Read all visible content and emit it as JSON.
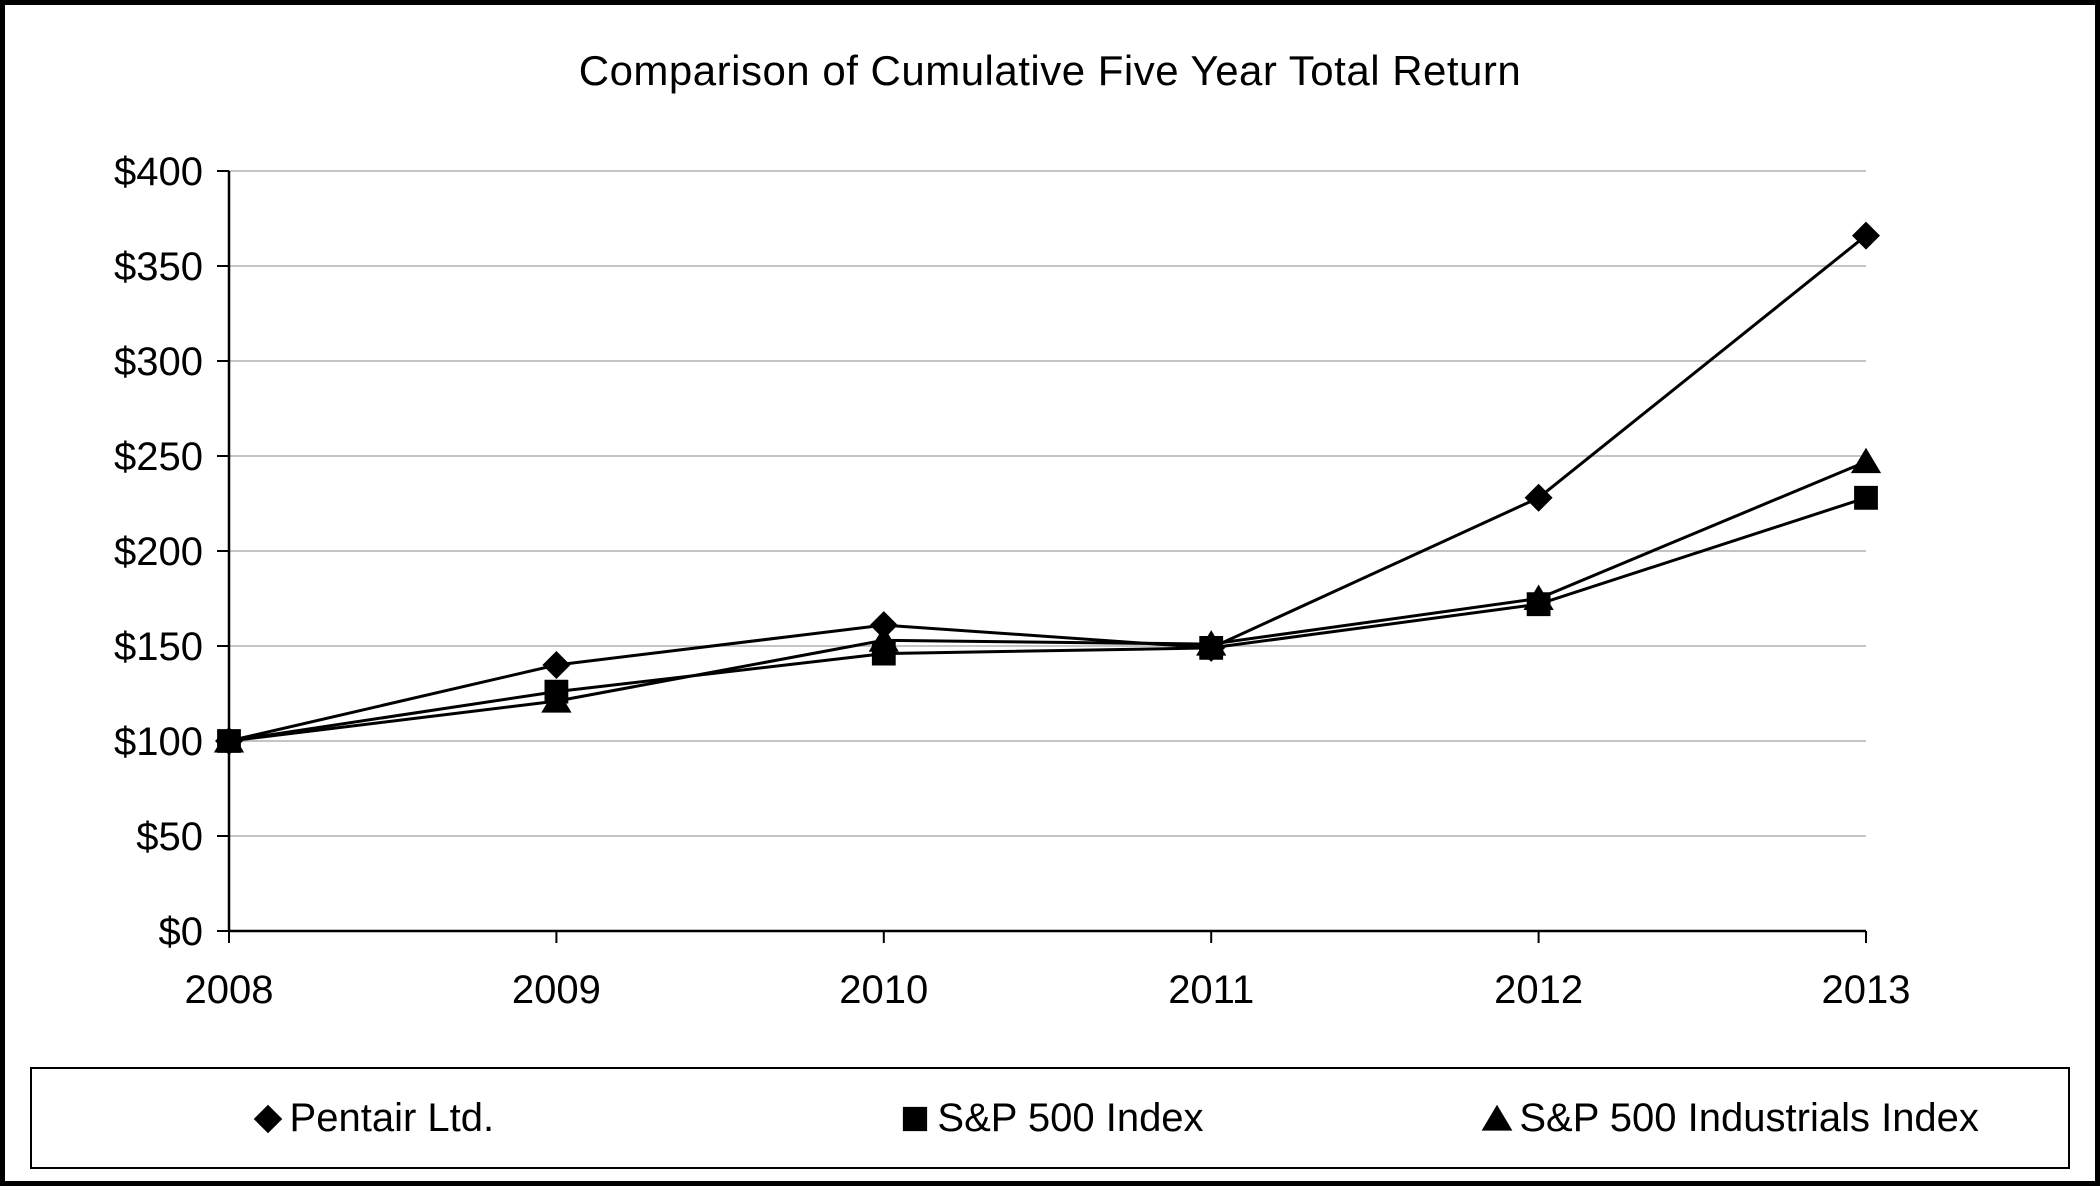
{
  "chart_data": {
    "type": "line",
    "title": "Comparison of Cumulative Five Year Total Return",
    "categories": [
      "2008",
      "2009",
      "2010",
      "2011",
      "2012",
      "2013"
    ],
    "series": [
      {
        "name": "Pentair Ltd.",
        "marker": "diamond",
        "values": [
          100,
          140,
          161,
          149,
          228,
          366
        ]
      },
      {
        "name": "S&P 500 Index",
        "marker": "square",
        "values": [
          100,
          126,
          146,
          149,
          172,
          228
        ]
      },
      {
        "name": "S&P 500 Industrials Index",
        "marker": "triangle",
        "values": [
          100,
          121,
          153,
          151,
          175,
          247
        ]
      }
    ],
    "xlabel": "",
    "ylabel": "",
    "ylim": [
      0,
      400
    ],
    "ytick_step": 50,
    "ytick_prefix": "$",
    "ytick_labels": [
      "$0",
      "$50",
      "$100",
      "$150",
      "$200",
      "$250",
      "$300",
      "$350",
      "$400"
    ],
    "grid": true,
    "legend_position": "bottom",
    "colors": {
      "series_line": "#000000",
      "marker_fill": "#000000",
      "grid_line": "#b0b0b0",
      "axis_line": "#000000",
      "text": "#000000",
      "background": "#ffffff",
      "frame_border": "#000000"
    }
  }
}
